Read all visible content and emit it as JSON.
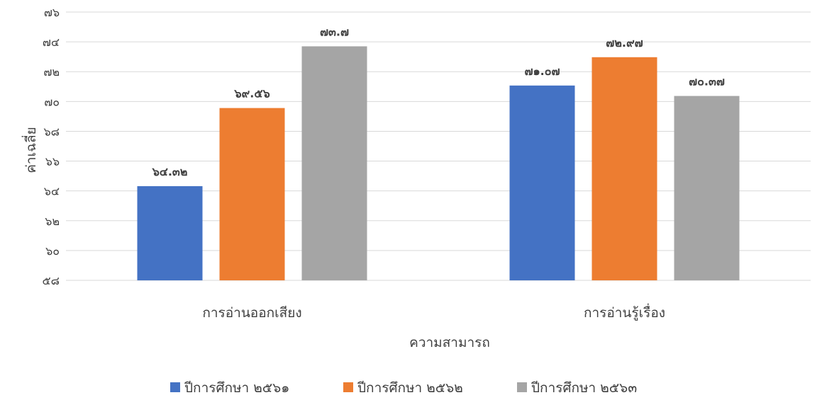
{
  "chart_data": {
    "type": "bar",
    "title": "",
    "xlabel": "ความสามารถ",
    "ylabel": "ค่าเฉลี่ย",
    "ylim": [
      58,
      76
    ],
    "ytick_step": 2,
    "ytick_labels": [
      "๕๘",
      "๖๐",
      "๖๒",
      "๖๔",
      "๖๖",
      "๖๘",
      "๗๐",
      "๗๒",
      "๗๔",
      "๗๖"
    ],
    "categories": [
      "การอ่านออกเสียง",
      "การอ่านรู้เรื่อง"
    ],
    "grid": true,
    "legend_position": "bottom",
    "series": [
      {
        "name": "ปีการศึกษา ๒๕๖๑",
        "color": "#4472C4",
        "values": [
          64.32,
          71.07
        ],
        "labels": [
          "๖๔.๓๒",
          "๗๑.๐๗"
        ]
      },
      {
        "name": "ปีการศึกษา ๒๕๖๒",
        "color": "#ED7D31",
        "values": [
          69.56,
          72.97
        ],
        "labels": [
          "๖๙.๕๖",
          "๗๒.๙๗"
        ]
      },
      {
        "name": "ปีการศึกษา ๒๕๖๓",
        "color": "#A5A5A5",
        "values": [
          73.7,
          70.37
        ],
        "labels": [
          "๗๓.๗",
          "๗๐.๓๗"
        ]
      }
    ]
  }
}
